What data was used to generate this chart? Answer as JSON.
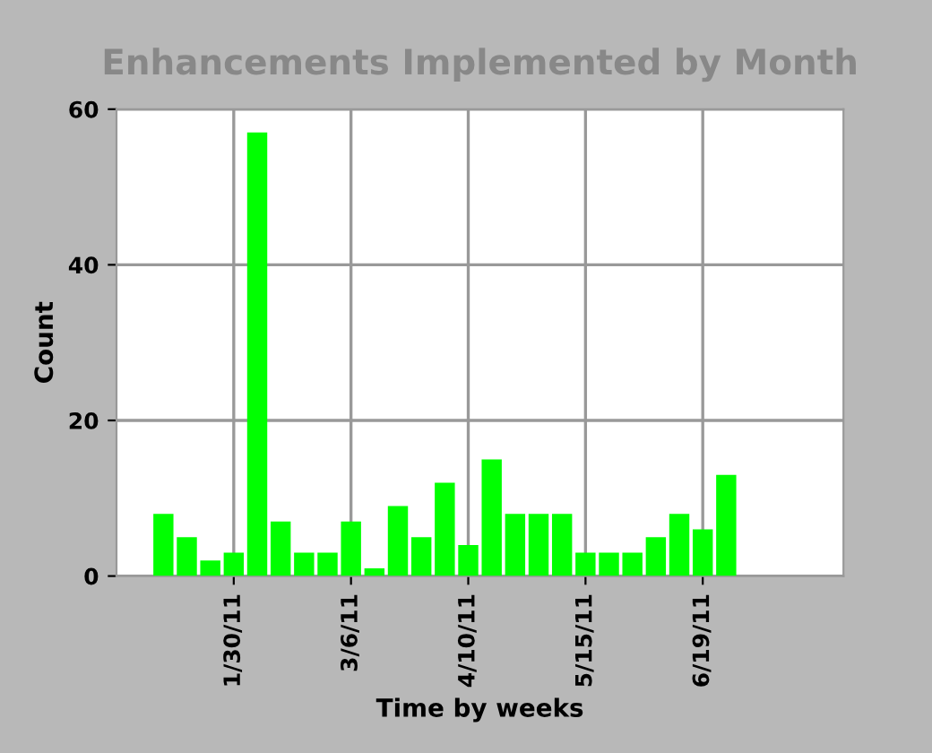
{
  "chart_data": {
    "type": "bar",
    "title": "Enhancements Implemented by Month",
    "xlabel": "Time by weeks",
    "ylabel": "Count",
    "x": [
      "2011-01-02",
      "2011-01-09",
      "2011-01-16",
      "2011-01-23",
      "2011-01-30",
      "2011-02-06",
      "2011-02-13",
      "2011-02-20",
      "2011-02-27",
      "2011-03-06",
      "2011-03-13",
      "2011-03-20",
      "2011-03-27",
      "2011-04-03",
      "2011-04-10",
      "2011-04-17",
      "2011-04-24",
      "2011-05-01",
      "2011-05-08",
      "2011-05-15",
      "2011-05-22",
      "2011-05-29",
      "2011-06-05",
      "2011-06-12",
      "2011-06-19",
      "2011-06-26"
    ],
    "values": [
      0,
      8,
      5,
      2,
      3,
      57,
      7,
      3,
      3,
      7,
      1,
      9,
      5,
      12,
      4,
      15,
      8,
      8,
      8,
      3,
      3,
      3,
      5,
      8,
      6,
      13
    ],
    "color": "#00ff00",
    "xlim": [
      "2010-12-26",
      "2011-07-31"
    ],
    "xticks": [
      {
        "value": "2011-01-30",
        "label": "1/30/11"
      },
      {
        "value": "2011-03-06",
        "label": "3/6/11"
      },
      {
        "value": "2011-04-10",
        "label": "4/10/11"
      },
      {
        "value": "2011-05-15",
        "label": "5/15/11"
      },
      {
        "value": "2011-06-19",
        "label": "6/19/11"
      }
    ],
    "ylim": [
      0,
      60
    ],
    "yticks": [
      0,
      20,
      40,
      60
    ],
    "grid": true,
    "legend": false
  }
}
